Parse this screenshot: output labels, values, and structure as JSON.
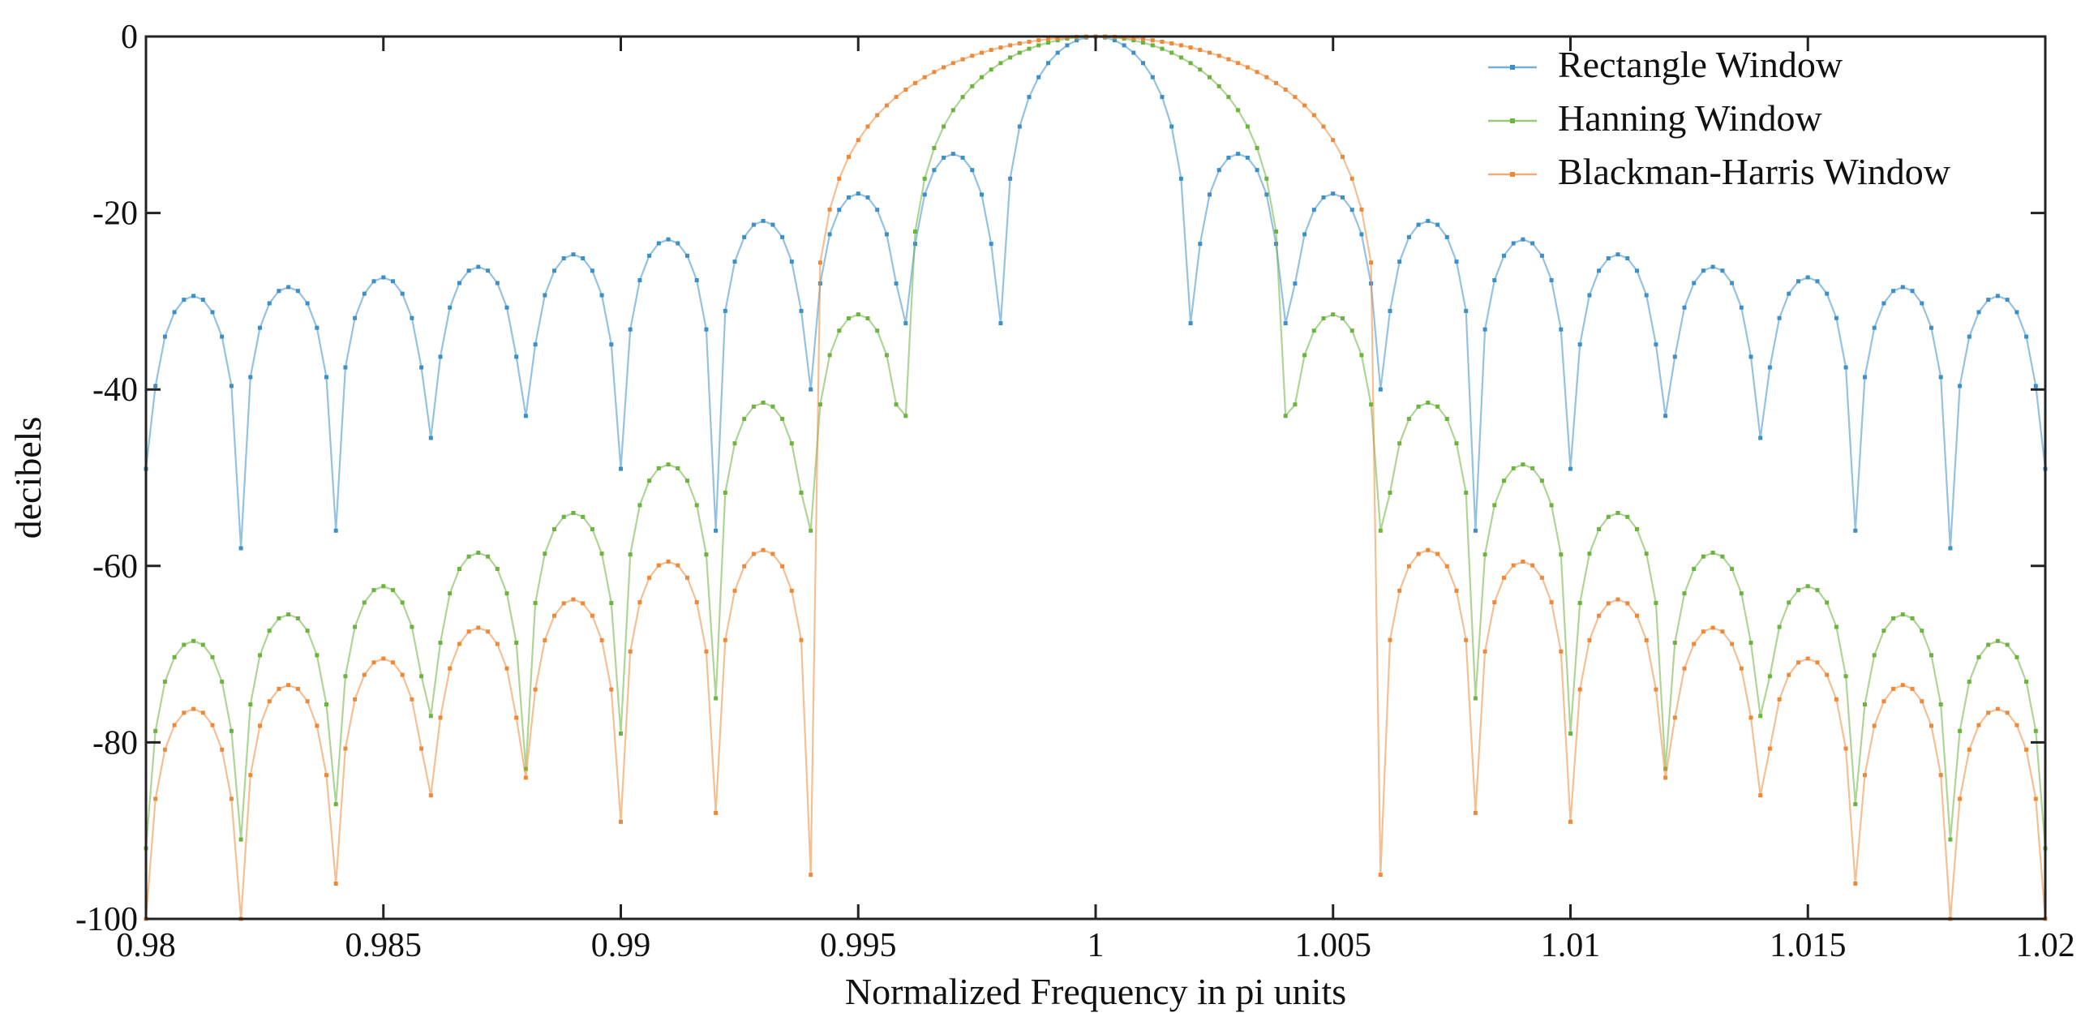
{
  "chart_data": {
    "type": "line",
    "title": "",
    "xlabel": "Normalized Frequency in pi units",
    "ylabel": "decibels",
    "xlim": [
      0.98,
      1.02
    ],
    "ylim": [
      -100,
      0
    ],
    "grid": false,
    "legend_position": "top-right",
    "x_ticks": [
      "0.98",
      "0.985",
      "0.99",
      "0.995",
      "1",
      "1.005",
      "1.01",
      "1.015",
      "1.02"
    ],
    "x_tick_values": [
      0.98,
      0.985,
      0.99,
      0.995,
      1.0,
      1.005,
      1.01,
      1.015,
      1.02
    ],
    "y_ticks": [
      "0",
      "-20",
      "-40",
      "-60",
      "-80",
      "-100"
    ],
    "y_tick_values": [
      0,
      -20,
      -40,
      -60,
      -80,
      -100
    ],
    "sample_step": 0.0002,
    "series": [
      {
        "name": "Rectangle Window",
        "color": "#3d8fc6",
        "mainlobe_halfwidth": 0.002,
        "sidelobe_spacing": 0.002,
        "peak_db": 0,
        "sidelobe_peaks_db": [
          -13.3,
          -17.8,
          -20.9,
          -23.0,
          -24.7,
          -26.1,
          -27.3,
          -28.4,
          -29.4
        ],
        "sidelobe_nulls_db": [
          -32.5,
          -32.5,
          -40,
          -56,
          -49,
          -43,
          -45.5,
          -56,
          -58,
          -49
        ],
        "display_floor_db": -100
      },
      {
        "name": "Hanning Window",
        "color": "#6db33f",
        "mainlobe_halfwidth": 0.004,
        "sidelobe_spacing": 0.002,
        "peak_db": 0,
        "sidelobe_peaks_db": [
          -31.5,
          -41.5,
          -48.5,
          -54.0,
          -58.5,
          -62.3,
          -65.5,
          -68.5
        ],
        "sidelobe_nulls_db": [
          -43,
          -56,
          -75,
          -79,
          -83,
          -77,
          -87,
          -91,
          -92
        ],
        "display_floor_db": -100
      },
      {
        "name": "Blackman-Harris Window",
        "color": "#ec8a3c",
        "mainlobe_halfwidth": 0.006,
        "sidelobe_spacing": 0.002,
        "peak_db": 0,
        "sidelobe_peaks_db": [
          -58.2,
          -59.5,
          -63.8,
          -67.0,
          -70.5,
          -73.5,
          -76.2
        ],
        "sidelobe_nulls_db": [
          -95,
          -88,
          -89,
          -84,
          -86,
          -96,
          -100,
          -100
        ],
        "display_floor_db": -100
      }
    ]
  }
}
